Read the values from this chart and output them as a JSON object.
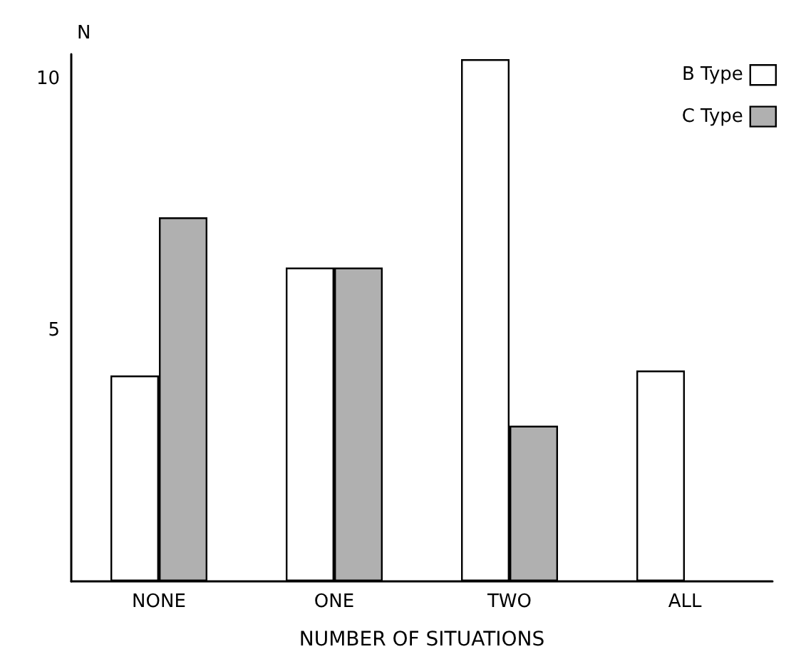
{
  "chart_data": {
    "type": "bar",
    "xlabel": "NUMBER OF SITUATIONS",
    "ylabel": "N",
    "categories": [
      "NONE",
      "ONE",
      "TWO",
      "ALL"
    ],
    "series": [
      {
        "name": "B Type",
        "color": "#ffffff",
        "values": [
          4.1,
          6.25,
          10.4,
          4.2
        ]
      },
      {
        "name": "C Type",
        "color": "#b0b0b0",
        "values": [
          7.25,
          6.25,
          3.1,
          null
        ]
      }
    ],
    "ylim": [
      0,
      10.5
    ],
    "yticks": [
      5,
      10
    ],
    "grid": false,
    "legend": "top right"
  }
}
